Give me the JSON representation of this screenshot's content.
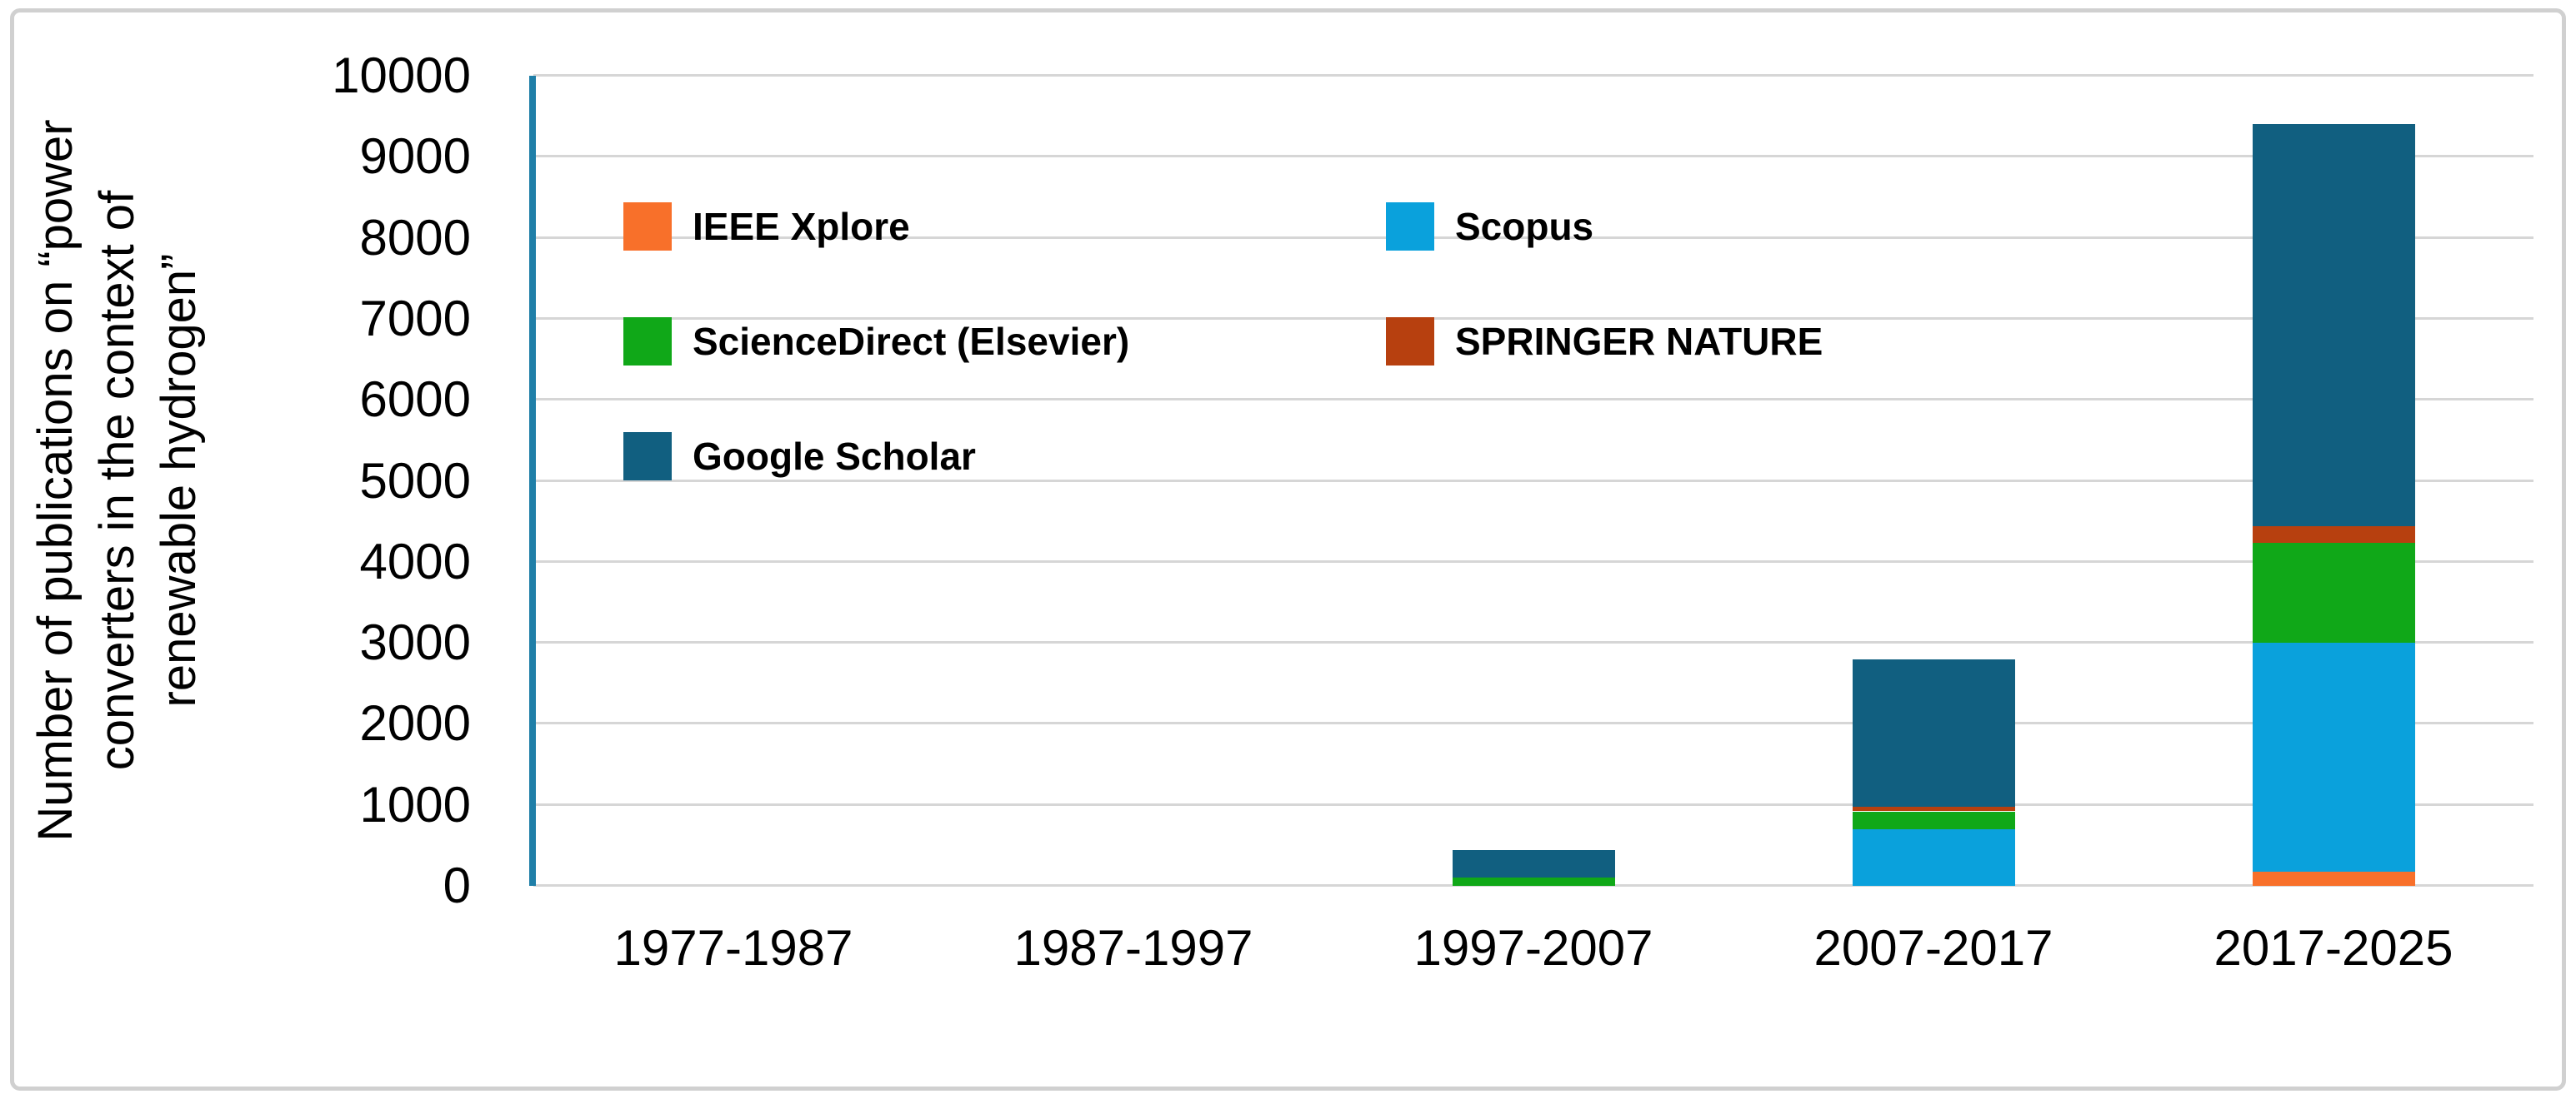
{
  "figure": {
    "background": "#FFFFFF",
    "border_color": "#D0D0D0"
  },
  "chart_data": {
    "type": "bar",
    "stacked": true,
    "categories": [
      "1977-1987",
      "1987-1997",
      "1997-2007",
      "2007-2017",
      "2017-2025"
    ],
    "series": [
      {
        "name": "IEEE Xplore",
        "color": "#F8702A",
        "values": [
          0,
          0,
          0,
          0,
          170
        ]
      },
      {
        "name": "Scopus",
        "color": "#0AA1DC",
        "values": [
          0,
          0,
          0,
          700,
          2830
        ]
      },
      {
        "name": "ScienceDirect (Elsevier)",
        "color": "#10A818",
        "values": [
          0,
          0,
          100,
          220,
          1230
        ]
      },
      {
        "name": "SPRINGER NATURE",
        "color": "#B7400F",
        "values": [
          0,
          0,
          0,
          60,
          210
        ]
      },
      {
        "name": "Google Scholar",
        "color": "#115F80",
        "values": [
          0,
          0,
          340,
          1820,
          4960
        ]
      }
    ],
    "totals": [
      0,
      0,
      440,
      2800,
      9400
    ],
    "ylabel": "Number of publications on “power converters in the context of renewable hydrogen”",
    "ylabel_lines": [
      "Number of publications on “power",
      "converters in the context of",
      "renewable hydrogen”"
    ],
    "ylim": [
      0,
      10000
    ],
    "ytick_step": 1000,
    "grid": true,
    "gridline_color": "#D6D6D6",
    "axis_line_color": "#1F7FA8",
    "legend_position": "upper-left-inside",
    "legend_columns": 2
  }
}
